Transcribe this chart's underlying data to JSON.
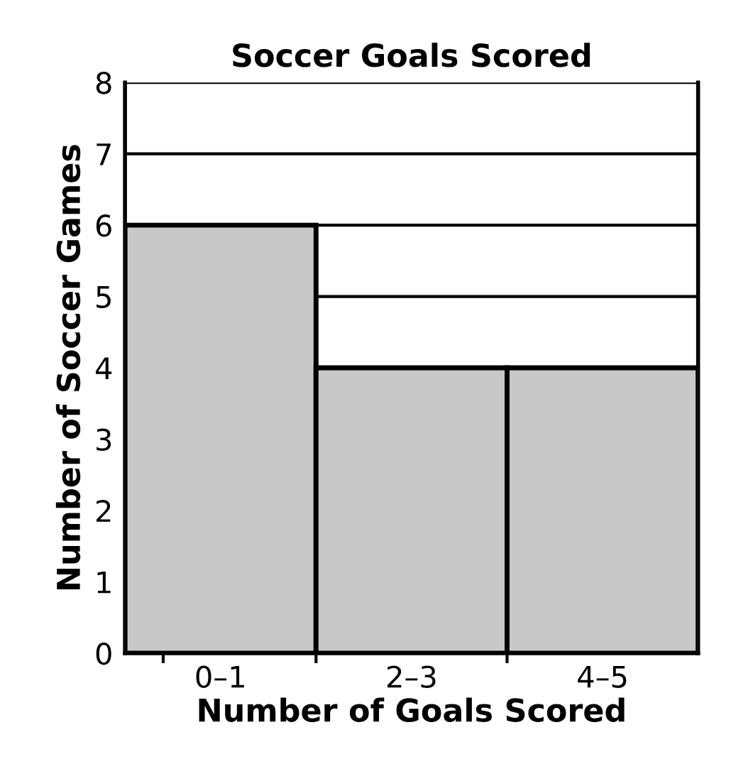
{
  "chart_data": {
    "type": "bar",
    "title": "Soccer Goals Scored",
    "xlabel": "Number of Goals Scored",
    "ylabel": "Number of Soccer Games",
    "categories": [
      "0–1",
      "2–3",
      "4–5"
    ],
    "values": [
      6,
      4,
      4
    ],
    "color": "#c8c8c8",
    "ylim": [
      0,
      8
    ],
    "yticks": [
      0,
      1,
      2,
      3,
      4,
      5,
      6,
      7,
      8
    ],
    "grid": "y"
  }
}
